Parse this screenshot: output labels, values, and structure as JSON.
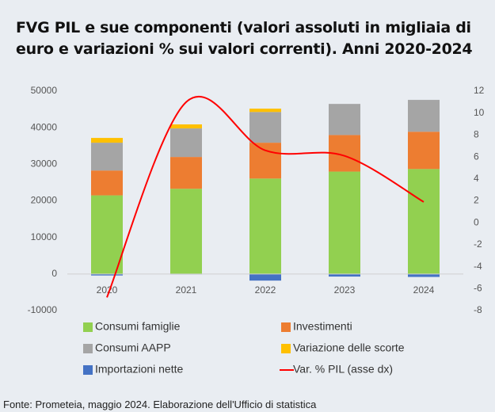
{
  "chart_data": {
    "type": "bar",
    "title": "FVG PIL e sue componenti (valori assoluti in migliaia di euro e variazioni % sui valori correnti). Anni 2020-2024",
    "categories": [
      "2020",
      "2021",
      "2022",
      "2023",
      "2024"
    ],
    "series": [
      {
        "name": "Consumi famiglie",
        "color": "#92d050",
        "values": [
          21500,
          23300,
          26100,
          28000,
          28700
        ]
      },
      {
        "name": "Investimenti",
        "color": "#ed7d31",
        "values": [
          6800,
          8700,
          9800,
          10000,
          10200
        ]
      },
      {
        "name": "Consumi AAPP",
        "color": "#a5a5a5",
        "values": [
          7600,
          7800,
          8400,
          8500,
          8700
        ]
      },
      {
        "name": "Variazione delle scorte",
        "color": "#ffc000",
        "values": [
          1300,
          1100,
          900,
          0,
          0
        ]
      },
      {
        "name": "Importazioni nette",
        "color": "#4472c4",
        "values": [
          -400,
          -100,
          -1800,
          -700,
          -800
        ]
      },
      {
        "name": "Var. % PIL (asse dx)",
        "color": "#ff0000",
        "type": "line",
        "axis": "y2",
        "values": [
          -6.8,
          11.0,
          6.6,
          6.1,
          1.9
        ]
      }
    ],
    "ylim": [
      -10000,
      50000
    ],
    "yticks": [
      -10000,
      0,
      10000,
      20000,
      30000,
      40000,
      50000
    ],
    "y2lim": [
      -8,
      12
    ],
    "y2ticks": [
      -8,
      -6,
      -4,
      -2,
      0,
      2,
      4,
      6,
      8,
      10,
      12
    ],
    "grid": false,
    "source": "Fonte: Prometeia, maggio 2024. Elaborazione dell'Ufficio di statistica"
  }
}
